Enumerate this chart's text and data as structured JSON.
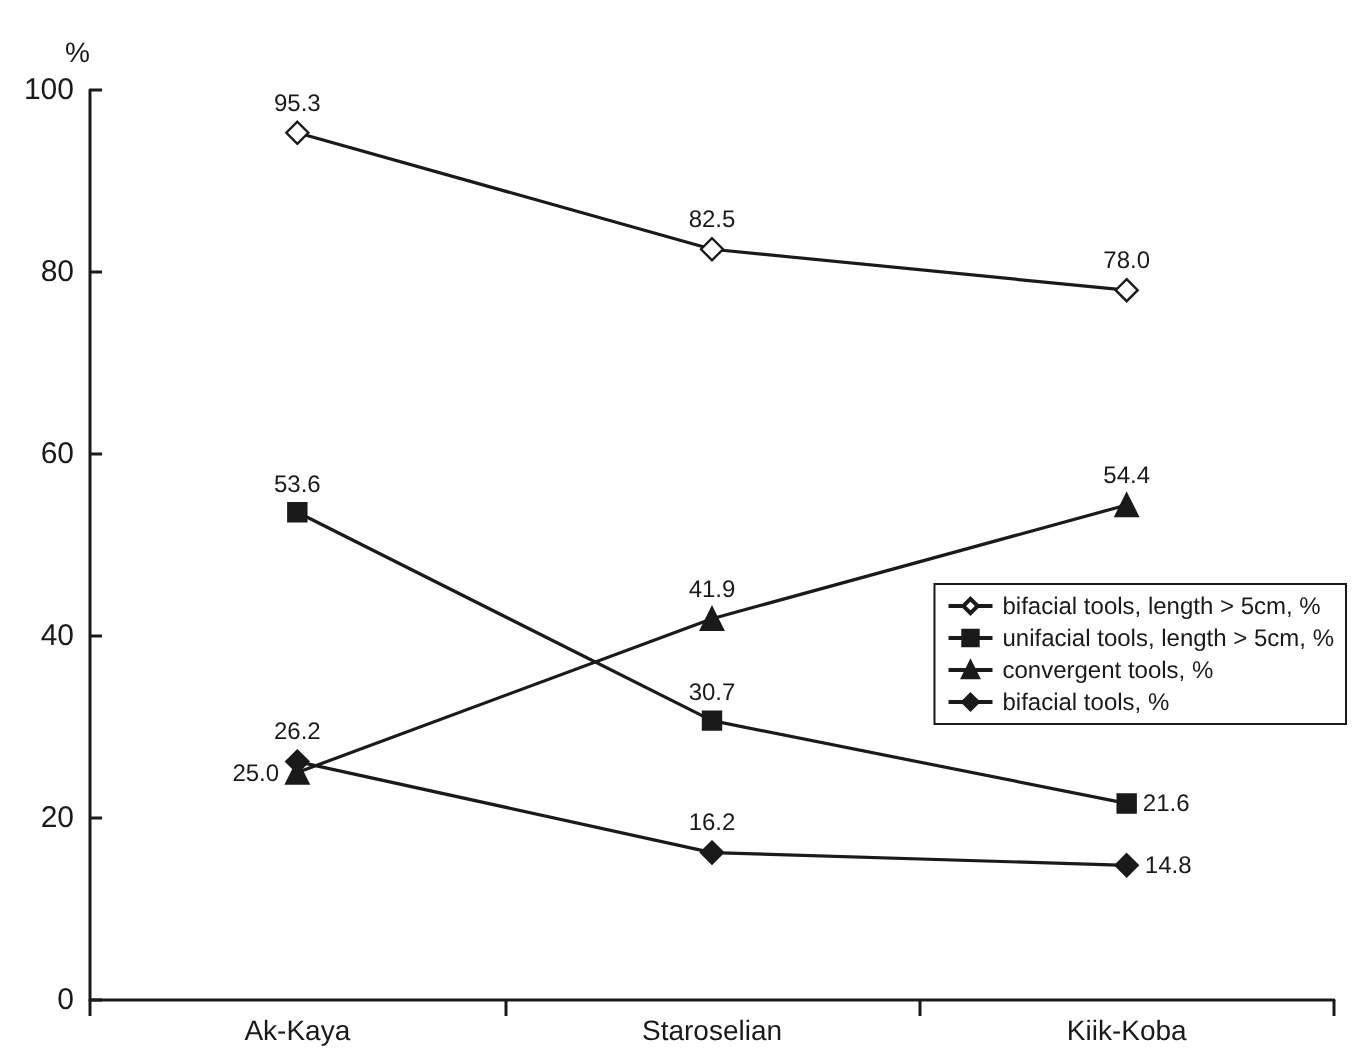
{
  "chart_data": {
    "type": "line",
    "ylabel": "%",
    "categories": [
      "Ak-Kaya",
      "Staroselian",
      "Kiik-Koba"
    ],
    "series": [
      {
        "name": "bifacial tools, length > 5cm, %",
        "color": "#1a1a1a",
        "marker": "diamond",
        "values": [
          95.3,
          82.5,
          78.0
        ],
        "value_labels": [
          "95.3",
          "82.5",
          "78.0"
        ]
      },
      {
        "name": "unifacial tools, length > 5cm, %",
        "color": "#1a1a1a",
        "marker": "square",
        "values": [
          53.6,
          30.7,
          21.6
        ],
        "value_labels": [
          "53.6",
          "30.7",
          "21.6"
        ]
      },
      {
        "name": "convergent tools, %",
        "color": "#1a1a1a",
        "marker": "triangle",
        "values": [
          25.0,
          41.9,
          54.4
        ],
        "value_labels": [
          "25.0",
          "41.9",
          "54.4"
        ]
      },
      {
        "name": "bifacial tools, %",
        "color": "#1a1a1a",
        "marker": "diamond",
        "values": [
          26.2,
          16.2,
          14.8
        ],
        "value_labels": [
          "26.2",
          "16.2",
          "14.8"
        ]
      }
    ],
    "ylim": [
      0,
      100
    ],
    "yticks": [
      0,
      20,
      40,
      60,
      80,
      100
    ],
    "grid": false,
    "legend": "right",
    "line_style": "solid"
  }
}
